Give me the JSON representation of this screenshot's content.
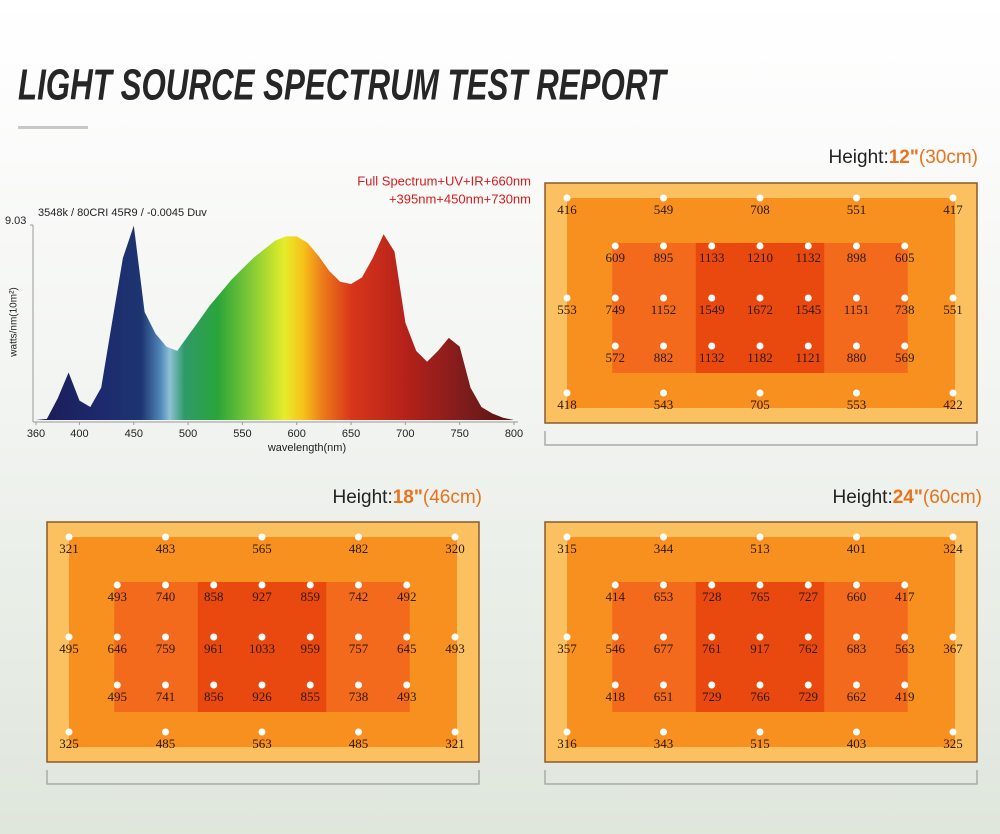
{
  "title": "LIGHT SOURCE SPECTRUM TEST REPORT",
  "chart_data": {
    "type": "area",
    "x": [
      360,
      370,
      380,
      390,
      400,
      410,
      420,
      430,
      440,
      450,
      460,
      470,
      480,
      490,
      500,
      510,
      520,
      530,
      540,
      550,
      560,
      570,
      580,
      590,
      600,
      610,
      620,
      630,
      640,
      650,
      660,
      670,
      680,
      690,
      700,
      710,
      720,
      730,
      740,
      750,
      760,
      770,
      780,
      790,
      800
    ],
    "values": [
      0,
      0.05,
      1.0,
      2.2,
      0.9,
      0.6,
      1.5,
      4.5,
      7.5,
      9.0,
      5.0,
      4.0,
      3.4,
      3.2,
      3.9,
      4.6,
      5.3,
      5.9,
      6.5,
      7.0,
      7.5,
      7.9,
      8.3,
      8.5,
      8.5,
      8.2,
      7.6,
      6.9,
      6.4,
      6.3,
      6.6,
      7.5,
      8.6,
      7.8,
      4.5,
      3.2,
      2.7,
      3.2,
      3.8,
      3.4,
      1.5,
      0.6,
      0.3,
      0.1,
      0
    ],
    "xlim": [
      360,
      800
    ],
    "xticks": [
      360,
      400,
      450,
      500,
      550,
      600,
      650,
      700,
      750,
      800
    ],
    "ylim": [
      0,
      9.03
    ],
    "yticks": [
      9.03
    ],
    "xlabel": "wavelength(nm)",
    "ylabel": "watts/nm(10m²)",
    "annotations": [
      "3548k / 80CRI 45R9 / -0.0045 Duv",
      "Full Spectrum+UV+IR+660nm",
      "+395nm+450nm+730nm"
    ]
  },
  "maps": [
    {
      "label": "Height:",
      "height": "12\"",
      "metric": "(30cm)",
      "rows": [
        [
          416,
          549,
          708,
          551,
          417
        ],
        [
          609,
          895,
          1133,
          1210,
          1132,
          898,
          605
        ],
        [
          553,
          749,
          1152,
          1549,
          1672,
          1545,
          1151,
          738,
          551
        ],
        [
          572,
          882,
          1132,
          1182,
          1121,
          880,
          569
        ],
        [
          418,
          543,
          705,
          553,
          422
        ]
      ]
    },
    {
      "label": "Height:",
      "height": "18\"",
      "metric": "(46cm)",
      "rows": [
        [
          321,
          483,
          565,
          482,
          320
        ],
        [
          493,
          740,
          858,
          927,
          859,
          742,
          492
        ],
        [
          495,
          646,
          759,
          961,
          1033,
          959,
          757,
          645,
          493
        ],
        [
          495,
          741,
          856,
          926,
          855,
          738,
          493
        ],
        [
          325,
          485,
          563,
          485,
          321
        ]
      ]
    },
    {
      "label": "Height:",
      "height": "24\"",
      "metric": "(60cm)",
      "rows": [
        [
          315,
          344,
          513,
          401,
          324
        ],
        [
          414,
          653,
          728,
          765,
          727,
          660,
          417
        ],
        [
          357,
          546,
          677,
          761,
          917,
          762,
          683,
          563,
          367
        ],
        [
          418,
          651,
          729,
          766,
          729,
          662,
          419
        ],
        [
          316,
          343,
          515,
          403,
          325
        ]
      ]
    }
  ]
}
